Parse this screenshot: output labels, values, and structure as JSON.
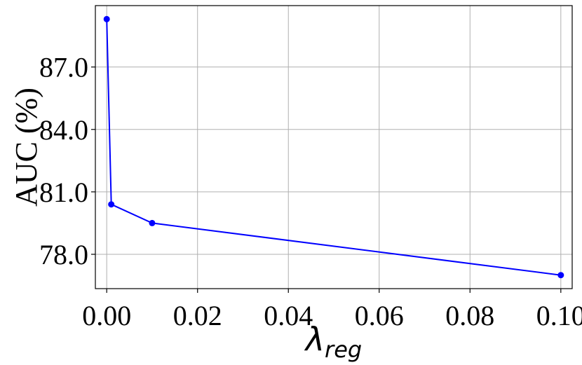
{
  "chart_data": {
    "type": "line",
    "title": "",
    "xlabel": {
      "symbol": "λ",
      "subscript": "reg"
    },
    "ylabel": "AUC (%)",
    "xlim": [
      -0.0025,
      0.1025
    ],
    "ylim": [
      76.35,
      89.95
    ],
    "x_ticks": [
      0.0,
      0.02,
      0.04,
      0.06,
      0.08,
      0.1
    ],
    "x_tick_labels": [
      "0.00",
      "0.02",
      "0.04",
      "0.06",
      "0.08",
      "0.10"
    ],
    "y_ticks": [
      78.0,
      81.0,
      84.0,
      87.0
    ],
    "y_tick_labels": [
      "78.0",
      "81.0",
      "84.0",
      "87.0"
    ],
    "grid": true,
    "series": [
      {
        "color": "#0000ff",
        "marker": "circle",
        "x": [
          0.0,
          0.001,
          0.01,
          0.1
        ],
        "y": [
          89.3,
          80.4,
          79.5,
          77.0
        ]
      }
    ]
  }
}
